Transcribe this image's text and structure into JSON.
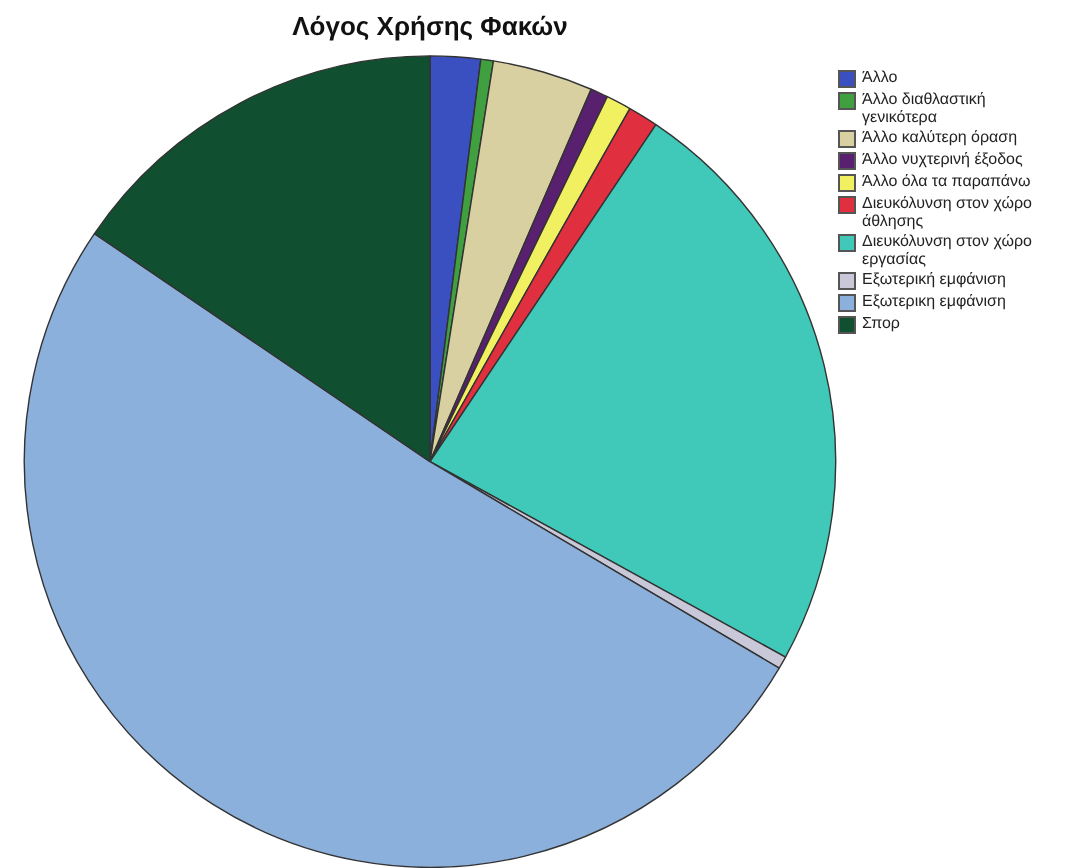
{
  "chart_data": {
    "type": "pie",
    "title": "Λόγος Χρήσης Φακών",
    "categories": [
      "Άλλο",
      "Άλλο διαθλαστική γενικότερα",
      "Άλλο καλύτερη όραση",
      "Άλλο νυχτερινή έξοδος",
      "Άλλο όλα τα παραπάνω",
      "Διευκόλυνση στον χώρο άθλησης",
      "Διευκόλυνση στον χώρο εργασίας",
      "Εξωτερική εμφάνιση",
      "Εξωτερικη εμφάνιση",
      "Σπορ"
    ],
    "values": [
      2,
      0.5,
      4,
      0.7,
      1,
      1.2,
      23.6,
      0.5,
      51,
      15.5
    ],
    "colors": [
      "#3a50c0",
      "#40a040",
      "#d8d0a0",
      "#5a2070",
      "#f0f060",
      "#e03040",
      "#40c8b8",
      "#c8c8d8",
      "#8cb0dc",
      "#105030"
    ],
    "legend": "top right"
  }
}
